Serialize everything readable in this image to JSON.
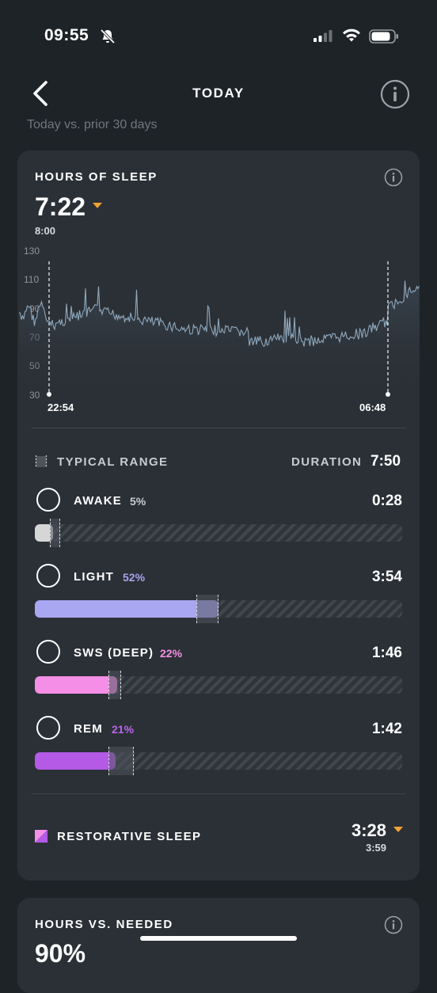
{
  "status_bar": {
    "time": "09:55"
  },
  "header": {
    "title": "TODAY",
    "subtitle": "Today vs. prior 30 days"
  },
  "sleep_card": {
    "title": "HOURS OF SLEEP",
    "value": "7:22",
    "baseline": "8:00",
    "chart": {
      "y_ticks": [
        "130",
        "110",
        "90",
        "70",
        "50",
        "30"
      ],
      "start_time": "22:54",
      "end_time": "06:48"
    },
    "typical_range_label": "TYPICAL RANGE",
    "duration_label": "DURATION",
    "duration_value": "7:50",
    "stages": [
      {
        "name": "AWAKE",
        "percent": "5%",
        "value": "0:28",
        "color": "#d6d6d6",
        "pct_color": "#c8ccd0",
        "fill": 0.05,
        "range": [
          0.04,
          0.07
        ]
      },
      {
        "name": "LIGHT",
        "percent": "52%",
        "value": "3:54",
        "color": "#a9a6f2",
        "pct_color": "#a6a3f0",
        "fill": 0.5,
        "range": [
          0.44,
          0.5
        ]
      },
      {
        "name": "SWS (DEEP)",
        "percent": "22%",
        "value": "1:46",
        "color": "#f58ee6",
        "pct_color": "#f28fe2",
        "fill": 0.225,
        "range": [
          0.2,
          0.235
        ]
      },
      {
        "name": "REM",
        "percent": "21%",
        "value": "1:42",
        "color": "#b45ae6",
        "pct_color": "#b866e8",
        "fill": 0.22,
        "range": [
          0.2,
          0.27
        ]
      }
    ],
    "restorative_label": "RESTORATIVE SLEEP",
    "restorative_value": "3:28",
    "restorative_baseline": "3:59"
  },
  "needed_card": {
    "title": "HOURS VS. NEEDED",
    "value_partial": "90%"
  },
  "colors": {
    "background": "#1e2328",
    "card": "#2b3036",
    "caret": "#f0a233",
    "line": "#8fa8bd"
  }
}
